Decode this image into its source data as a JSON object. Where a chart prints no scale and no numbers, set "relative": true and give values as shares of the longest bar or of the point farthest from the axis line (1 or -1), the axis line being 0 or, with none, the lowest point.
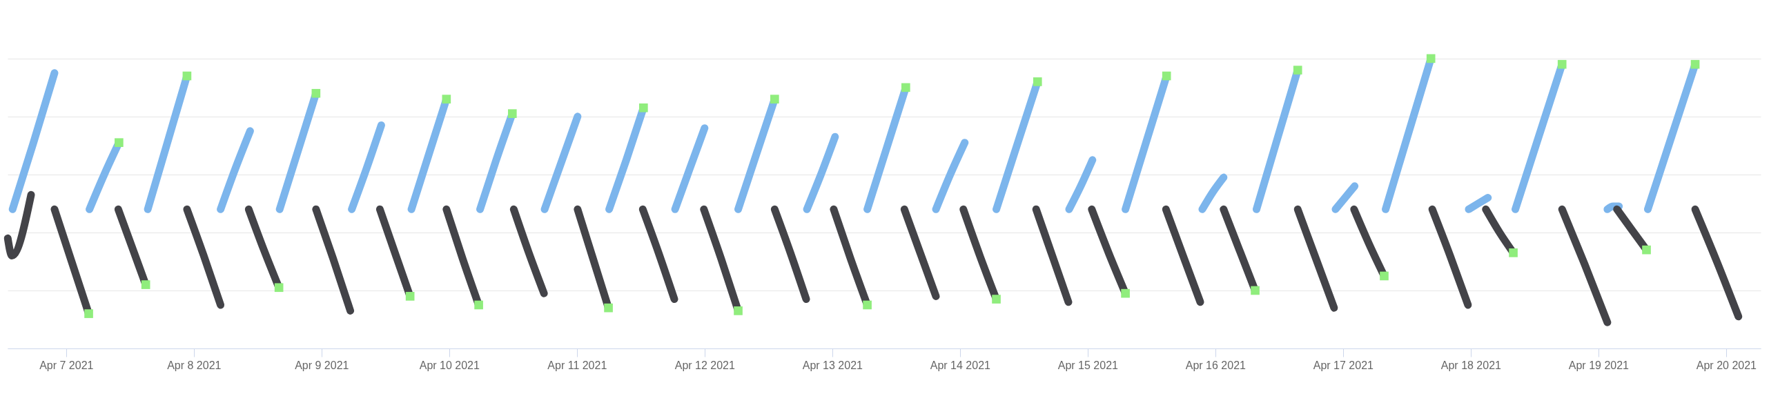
{
  "chart_data": {
    "type": "line",
    "relative": true,
    "grid": "y",
    "tick_labels": "x",
    "line_style": "solid",
    "xlim": [
      "2021-04-06T13:00",
      "2021-04-20T06:30"
    ],
    "xticks": [
      {
        "value": "2021-04-07",
        "label": "Apr 7 2021"
      },
      {
        "value": "2021-04-08",
        "label": "Apr 8 2021"
      },
      {
        "value": "2021-04-09",
        "label": "Apr 9 2021"
      },
      {
        "value": "2021-04-10",
        "label": "Apr 10 2021"
      },
      {
        "value": "2021-04-11",
        "label": "Apr 11 2021"
      },
      {
        "value": "2021-04-12",
        "label": "Apr 12 2021"
      },
      {
        "value": "2021-04-13",
        "label": "Apr 13 2021"
      },
      {
        "value": "2021-04-14",
        "label": "Apr 14 2021"
      },
      {
        "value": "2021-04-15",
        "label": "Apr 15 2021"
      },
      {
        "value": "2021-04-16",
        "label": "Apr 16 2021"
      },
      {
        "value": "2021-04-17",
        "label": "Apr 17 2021"
      },
      {
        "value": "2021-04-18",
        "label": "Apr 18 2021"
      },
      {
        "value": "2021-04-19",
        "label": "Apr 19 2021"
      },
      {
        "value": "2021-04-20",
        "label": "Apr 20 2021"
      }
    ],
    "series": [
      {
        "color": "#7cb5ec",
        "x": [
          "2021-04-06T13:56",
          "2021-04-06T17:52",
          "2021-04-06T21:49"
        ],
        "values": [
          0.48,
          0.71,
          0.95
        ]
      },
      {
        "color": "#7cb5ec",
        "x": [
          "2021-04-07T04:23",
          "2021-04-07T07:10",
          "2021-04-07T09:56"
        ],
        "values": [
          0.48,
          0.6,
          0.71
        ]
      },
      {
        "color": "#7cb5ec",
        "x": [
          "2021-04-07T15:21",
          "2021-04-07T19:02",
          "2021-04-07T22:43"
        ],
        "values": [
          0.48,
          0.71,
          0.94
        ]
      },
      {
        "color": "#7cb5ec",
        "x": [
          "2021-04-08T05:02",
          "2021-04-08T07:48",
          "2021-04-08T10:35"
        ],
        "values": [
          0.48,
          0.62,
          0.75
        ]
      },
      {
        "color": "#7cb5ec",
        "x": [
          "2021-04-08T16:08",
          "2021-04-08T19:33",
          "2021-04-08T22:58"
        ],
        "values": [
          0.48,
          0.68,
          0.88
        ]
      },
      {
        "color": "#7cb5ec",
        "x": [
          "2021-04-09T05:41",
          "2021-04-09T08:27",
          "2021-04-09T11:14"
        ],
        "values": [
          0.48,
          0.62,
          0.77
        ]
      },
      {
        "color": "#7cb5ec",
        "x": [
          "2021-04-09T16:54",
          "2021-04-09T20:11",
          "2021-04-09T23:29"
        ],
        "values": [
          0.48,
          0.67,
          0.86
        ]
      },
      {
        "color": "#7cb5ec",
        "x": [
          "2021-04-10T05:48",
          "2021-04-10T08:50",
          "2021-04-10T11:52"
        ],
        "values": [
          0.48,
          0.65,
          0.81
        ]
      },
      {
        "color": "#7cb5ec",
        "x": [
          "2021-04-10T17:56",
          "2021-04-10T21:02",
          "2021-04-11T00:08"
        ],
        "values": [
          0.48,
          0.64,
          0.8
        ]
      },
      {
        "color": "#7cb5ec",
        "x": [
          "2021-04-11T06:04",
          "2021-04-11T09:17",
          "2021-04-11T12:31"
        ],
        "values": [
          0.48,
          0.65,
          0.83
        ]
      },
      {
        "color": "#7cb5ec",
        "x": [
          "2021-04-11T18:27",
          "2021-04-11T21:13",
          "2021-04-12T00:00"
        ],
        "values": [
          0.48,
          0.62,
          0.76
        ]
      },
      {
        "color": "#7cb5ec",
        "x": [
          "2021-04-12T06:19",
          "2021-04-12T09:44",
          "2021-04-12T13:10"
        ],
        "values": [
          0.48,
          0.67,
          0.86
        ]
      },
      {
        "color": "#7cb5ec",
        "x": [
          "2021-04-12T19:14",
          "2021-04-12T21:52",
          "2021-04-13T00:31"
        ],
        "values": [
          0.48,
          0.6,
          0.73
        ]
      },
      {
        "color": "#7cb5ec",
        "x": [
          "2021-04-13T06:35",
          "2021-04-13T10:12",
          "2021-04-13T13:49"
        ],
        "values": [
          0.48,
          0.69,
          0.9
        ]
      },
      {
        "color": "#7cb5ec",
        "x": [
          "2021-04-13T19:29",
          "2021-04-13T22:11",
          "2021-04-14T00:54"
        ],
        "values": [
          0.48,
          0.6,
          0.71
        ]
      },
      {
        "color": "#7cb5ec",
        "x": [
          "2021-04-14T06:50",
          "2021-04-14T10:42",
          "2021-04-14T14:35"
        ],
        "values": [
          0.48,
          0.7,
          0.92
        ]
      },
      {
        "color": "#7cb5ec",
        "x": [
          "2021-04-14T20:31",
          "2021-04-14T22:42",
          "2021-04-15T00:54"
        ],
        "values": [
          0.48,
          0.56,
          0.65
        ]
      },
      {
        "color": "#7cb5ec",
        "x": [
          "2021-04-15T07:06",
          "2021-04-15T10:58",
          "2021-04-15T14:50"
        ],
        "values": [
          0.48,
          0.71,
          0.94
        ]
      },
      {
        "color": "#7cb5ec",
        "x": [
          "2021-04-15T21:33",
          "2021-04-15T23:33",
          "2021-04-16T01:33"
        ],
        "values": [
          0.48,
          0.54,
          0.59
        ]
      },
      {
        "color": "#7cb5ec",
        "x": [
          "2021-04-16T07:44",
          "2021-04-16T11:36",
          "2021-04-16T15:29"
        ],
        "values": [
          0.48,
          0.72,
          0.96
        ]
      },
      {
        "color": "#7cb5ec",
        "x": [
          "2021-04-16T22:35",
          "2021-04-17T00:23",
          "2021-04-17T02:11"
        ],
        "values": [
          0.48,
          0.52,
          0.56
        ]
      },
      {
        "color": "#7cb5ec",
        "x": [
          "2021-04-17T08:00",
          "2021-04-17T12:15",
          "2021-04-17T16:31"
        ],
        "values": [
          0.48,
          0.74,
          1.0
        ]
      },
      {
        "color": "#7cb5ec",
        "x": [
          "2021-04-17T23:37",
          "2021-04-18T01:25",
          "2021-04-18T03:14"
        ],
        "values": [
          0.48,
          0.5,
          0.52
        ]
      },
      {
        "color": "#7cb5ec",
        "x": [
          "2021-04-18T08:23",
          "2021-04-18T12:46",
          "2021-04-18T17:10"
        ],
        "values": [
          0.48,
          0.73,
          0.98
        ]
      },
      {
        "color": "#7cb5ec",
        "x": [
          "2021-04-19T01:41",
          "2021-04-19T02:46",
          "2021-04-19T03:52"
        ],
        "values": [
          0.48,
          0.49,
          0.49
        ]
      },
      {
        "color": "#7cb5ec",
        "x": [
          "2021-04-19T09:17",
          "2021-04-19T13:44",
          "2021-04-19T18:11"
        ],
        "values": [
          0.48,
          0.73,
          0.98
        ]
      },
      {
        "color": "#434348",
        "x": [
          "2021-04-06T13:02",
          "2021-04-06T13:49",
          "2021-04-06T17:25"
        ],
        "values": [
          0.38,
          0.32,
          0.53
        ]
      },
      {
        "color": "#434348",
        "x": [
          "2021-04-06T21:49",
          "2021-04-07T01:02",
          "2021-04-07T04:15"
        ],
        "values": [
          0.48,
          0.3,
          0.12
        ]
      },
      {
        "color": "#434348",
        "x": [
          "2021-04-07T09:48",
          "2021-04-07T12:23",
          "2021-04-07T14:58"
        ],
        "values": [
          0.48,
          0.35,
          0.22
        ]
      },
      {
        "color": "#434348",
        "x": [
          "2021-04-07T22:43",
          "2021-04-08T01:52",
          "2021-04-08T05:02"
        ],
        "values": [
          0.48,
          0.32,
          0.15
        ]
      },
      {
        "color": "#434348",
        "x": [
          "2021-04-08T10:19",
          "2021-04-08T13:10",
          "2021-04-08T16:00"
        ],
        "values": [
          0.48,
          0.34,
          0.21
        ]
      },
      {
        "color": "#434348",
        "x": [
          "2021-04-08T22:58",
          "2021-04-09T02:11",
          "2021-04-09T05:25"
        ],
        "values": [
          0.48,
          0.31,
          0.13
        ]
      },
      {
        "color": "#434348",
        "x": [
          "2021-04-09T10:58",
          "2021-04-09T13:48",
          "2021-04-09T16:39"
        ],
        "values": [
          0.48,
          0.33,
          0.18
        ]
      },
      {
        "color": "#434348",
        "x": [
          "2021-04-09T23:29",
          "2021-04-10T02:31",
          "2021-04-10T05:33"
        ],
        "values": [
          0.48,
          0.31,
          0.15
        ]
      },
      {
        "color": "#434348",
        "x": [
          "2021-04-10T12:08",
          "2021-04-10T14:58",
          "2021-04-10T17:49"
        ],
        "values": [
          0.48,
          0.33,
          0.19
        ]
      },
      {
        "color": "#434348",
        "x": [
          "2021-04-11T00:08",
          "2021-04-11T03:02",
          "2021-04-11T05:56"
        ],
        "values": [
          0.48,
          0.31,
          0.14
        ]
      },
      {
        "color": "#434348",
        "x": [
          "2021-04-11T12:23",
          "2021-04-11T15:21",
          "2021-04-11T18:19"
        ],
        "values": [
          0.48,
          0.33,
          0.17
        ]
      },
      {
        "color": "#434348",
        "x": [
          "2021-04-11T23:52",
          "2021-04-12T03:06",
          "2021-04-12T06:19"
        ],
        "values": [
          0.48,
          0.31,
          0.13
        ]
      },
      {
        "color": "#434348",
        "x": [
          "2021-04-12T13:10",
          "2021-04-12T16:08",
          "2021-04-12T19:06"
        ],
        "values": [
          0.48,
          0.33,
          0.17
        ]
      },
      {
        "color": "#434348",
        "x": [
          "2021-04-13T00:16",
          "2021-04-13T03:26",
          "2021-04-13T06:35"
        ],
        "values": [
          0.48,
          0.31,
          0.15
        ]
      },
      {
        "color": "#434348",
        "x": [
          "2021-04-13T13:33",
          "2021-04-13T16:31",
          "2021-04-13T19:29"
        ],
        "values": [
          0.48,
          0.33,
          0.18
        ]
      },
      {
        "color": "#434348",
        "x": [
          "2021-04-14T00:38",
          "2021-04-14T03:44",
          "2021-04-14T06:50"
        ],
        "values": [
          0.48,
          0.32,
          0.17
        ]
      },
      {
        "color": "#434348",
        "x": [
          "2021-04-14T14:19",
          "2021-04-14T17:21",
          "2021-04-14T20:23"
        ],
        "values": [
          0.48,
          0.32,
          0.16
        ]
      },
      {
        "color": "#434348",
        "x": [
          "2021-04-15T00:46",
          "2021-04-15T03:56",
          "2021-04-15T07:06"
        ],
        "values": [
          0.48,
          0.33,
          0.19
        ]
      },
      {
        "color": "#434348",
        "x": [
          "2021-04-15T14:43",
          "2021-04-15T17:56",
          "2021-04-15T21:10"
        ],
        "values": [
          0.48,
          0.32,
          0.16
        ]
      },
      {
        "color": "#434348",
        "x": [
          "2021-04-16T01:33",
          "2021-04-16T04:31",
          "2021-04-16T07:29"
        ],
        "values": [
          0.48,
          0.34,
          0.2
        ]
      },
      {
        "color": "#434348",
        "x": [
          "2021-04-16T15:29",
          "2021-04-16T18:54",
          "2021-04-16T22:19"
        ],
        "values": [
          0.48,
          0.31,
          0.14
        ]
      },
      {
        "color": "#434348",
        "x": [
          "2021-04-17T02:04",
          "2021-04-17T04:54",
          "2021-04-17T07:44"
        ],
        "values": [
          0.48,
          0.36,
          0.25
        ]
      },
      {
        "color": "#434348",
        "x": [
          "2021-04-17T16:46",
          "2021-04-17T20:07",
          "2021-04-17T23:29"
        ],
        "values": [
          0.48,
          0.32,
          0.15
        ]
      },
      {
        "color": "#434348",
        "x": [
          "2021-04-18T02:50",
          "2021-04-18T05:25",
          "2021-04-18T08:00"
        ],
        "values": [
          0.48,
          0.4,
          0.33
        ]
      },
      {
        "color": "#434348",
        "x": [
          "2021-04-18T17:10",
          "2021-04-18T21:25",
          "2021-04-19T01:41"
        ],
        "values": [
          0.48,
          0.29,
          0.09
        ]
      },
      {
        "color": "#434348",
        "x": [
          "2021-04-19T03:29",
          "2021-04-19T06:15",
          "2021-04-19T09:02"
        ],
        "values": [
          0.48,
          0.41,
          0.34
        ]
      },
      {
        "color": "#434348",
        "x": [
          "2021-04-19T18:11",
          "2021-04-19T22:15",
          "2021-04-20T02:19"
        ],
        "values": [
          0.48,
          0.3,
          0.11
        ]
      },
      {
        "type": "scatter",
        "marker": "square",
        "color": "#90ed7d",
        "x": [
          "2021-04-07T04:15",
          "2021-04-07T09:56",
          "2021-04-07T14:58",
          "2021-04-07T22:43",
          "2021-04-08T16:00",
          "2021-04-08T22:58",
          "2021-04-09T16:39",
          "2021-04-09T23:29",
          "2021-04-10T05:33",
          "2021-04-10T11:52",
          "2021-04-11T05:56",
          "2021-04-11T12:31",
          "2021-04-12T06:19",
          "2021-04-12T13:10",
          "2021-04-13T06:35",
          "2021-04-13T13:49",
          "2021-04-14T06:50",
          "2021-04-14T14:35",
          "2021-04-15T07:06",
          "2021-04-15T14:50",
          "2021-04-16T07:29",
          "2021-04-16T15:29",
          "2021-04-17T07:44",
          "2021-04-17T16:31",
          "2021-04-18T08:00",
          "2021-04-18T17:10",
          "2021-04-19T09:02",
          "2021-04-19T18:11"
        ],
        "values": [
          0.12,
          0.71,
          0.22,
          0.94,
          0.21,
          0.88,
          0.18,
          0.86,
          0.15,
          0.81,
          0.14,
          0.83,
          0.13,
          0.86,
          0.15,
          0.9,
          0.17,
          0.92,
          0.19,
          0.94,
          0.2,
          0.96,
          0.25,
          1.0,
          0.33,
          0.98,
          0.34,
          0.98
        ]
      }
    ]
  }
}
